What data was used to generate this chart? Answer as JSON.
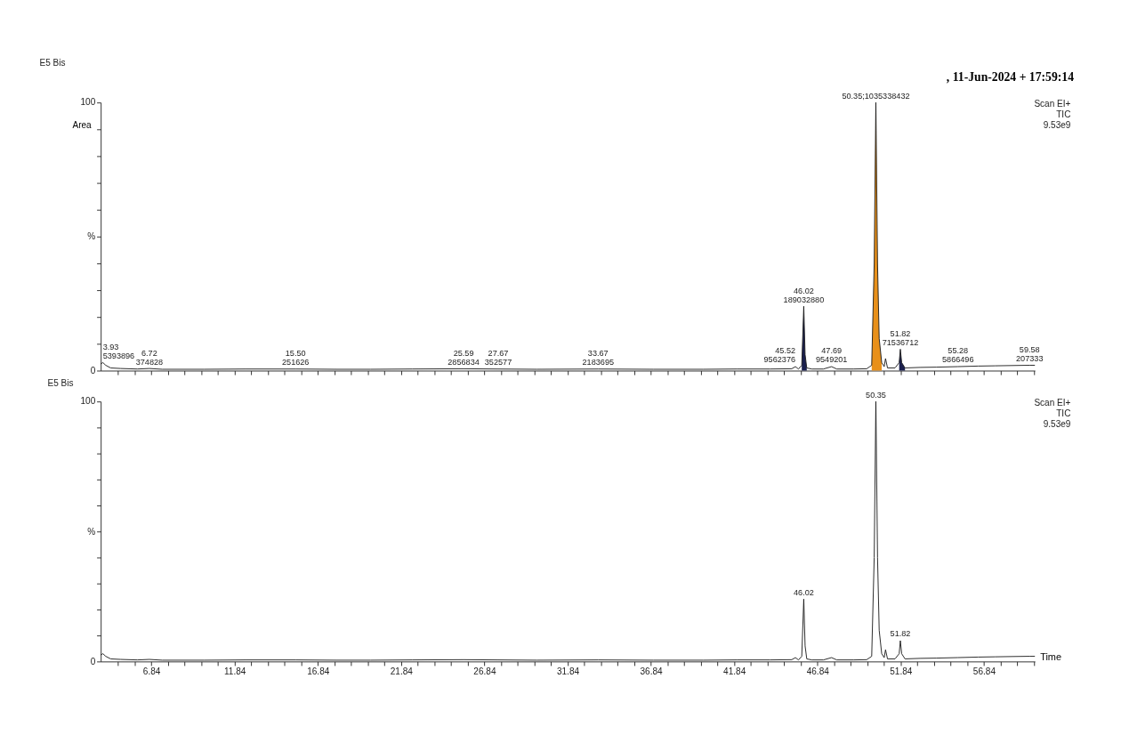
{
  "chart_data": [
    {
      "type": "line",
      "title": "E5 Bis",
      "ylabel": "Area",
      "legend": false,
      "grid": false,
      "tick_labels": "y",
      "xlim": [
        3.8,
        59.9
      ],
      "ylim": [
        0,
        100
      ],
      "xticks": [
        {
          "value": 4.84,
          "label": null
        },
        {
          "value": 5.84,
          "label": null
        },
        {
          "value": 6.84,
          "label": null
        },
        {
          "value": 7.84,
          "label": null
        },
        {
          "value": 8.84,
          "label": null
        },
        {
          "value": 9.84,
          "label": null
        },
        {
          "value": 10.84,
          "label": null
        },
        {
          "value": 11.84,
          "label": null
        },
        {
          "value": 12.84,
          "label": null
        },
        {
          "value": 13.84,
          "label": null
        },
        {
          "value": 14.84,
          "label": null
        },
        {
          "value": 15.84,
          "label": null
        },
        {
          "value": 16.84,
          "label": null
        },
        {
          "value": 17.84,
          "label": null
        },
        {
          "value": 18.84,
          "label": null
        },
        {
          "value": 19.84,
          "label": null
        },
        {
          "value": 20.84,
          "label": null
        },
        {
          "value": 21.84,
          "label": null
        },
        {
          "value": 22.84,
          "label": null
        },
        {
          "value": 23.84,
          "label": null
        },
        {
          "value": 24.84,
          "label": null
        },
        {
          "value": 25.84,
          "label": null
        },
        {
          "value": 26.84,
          "label": null
        },
        {
          "value": 27.84,
          "label": null
        },
        {
          "value": 28.84,
          "label": null
        },
        {
          "value": 29.84,
          "label": null
        },
        {
          "value": 30.84,
          "label": null
        },
        {
          "value": 31.84,
          "label": null
        },
        {
          "value": 32.84,
          "label": null
        },
        {
          "value": 33.84,
          "label": null
        },
        {
          "value": 34.84,
          "label": null
        },
        {
          "value": 35.84,
          "label": null
        },
        {
          "value": 36.84,
          "label": null
        },
        {
          "value": 37.84,
          "label": null
        },
        {
          "value": 38.84,
          "label": null
        },
        {
          "value": 39.84,
          "label": null
        },
        {
          "value": 40.84,
          "label": null
        },
        {
          "value": 41.84,
          "label": null
        },
        {
          "value": 42.84,
          "label": null
        },
        {
          "value": 43.84,
          "label": null
        },
        {
          "value": 44.84,
          "label": null
        },
        {
          "value": 45.84,
          "label": null
        },
        {
          "value": 46.84,
          "label": null
        },
        {
          "value": 47.84,
          "label": null
        },
        {
          "value": 48.84,
          "label": null
        },
        {
          "value": 49.84,
          "label": null
        },
        {
          "value": 50.84,
          "label": null
        },
        {
          "value": 51.84,
          "label": null
        },
        {
          "value": 52.84,
          "label": null
        },
        {
          "value": 53.84,
          "label": null
        },
        {
          "value": 54.84,
          "label": null
        },
        {
          "value": 55.84,
          "label": null
        },
        {
          "value": 56.84,
          "label": null
        },
        {
          "value": 57.84,
          "label": null
        },
        {
          "value": 58.84,
          "label": null
        },
        {
          "value": 59.84,
          "label": null
        }
      ],
      "yticks": [
        0,
        {
          "value": 10,
          "label": null
        },
        {
          "value": 20,
          "label": null
        },
        {
          "value": 30,
          "label": null
        },
        {
          "value": 40,
          "label": null
        },
        {
          "value": 50,
          "label": "%"
        },
        {
          "value": 60,
          "label": null
        },
        {
          "value": 70,
          "label": null
        },
        {
          "value": 80,
          "label": null
        },
        {
          "value": 90,
          "label": null
        },
        100
      ],
      "series": [
        {
          "type": "line",
          "color": "#1a1a1a",
          "x": [
            3.8,
            3.93,
            4.1,
            4.4,
            5,
            6,
            6.72,
            7.5,
            10,
            12.5,
            15.5,
            18,
            20,
            22.5,
            25.59,
            27.67,
            30,
            33.67,
            37,
            40,
            42,
            44,
            45.3,
            45.52,
            45.7,
            45.9,
            46.02,
            46.1,
            46.2,
            46.5,
            47.2,
            47.69,
            48,
            49,
            49.8,
            50.1,
            50.25,
            50.35,
            50.45,
            50.55,
            50.7,
            50.85,
            50.93,
            51.05,
            51.5,
            51.75,
            51.82,
            51.9,
            52.1,
            53,
            54,
            55.28,
            56.5,
            57.5,
            58.5,
            59.58,
            59.9
          ],
          "values": [
            2.5,
            3,
            2,
            1,
            0.8,
            0.6,
            0.8,
            0.5,
            0.5,
            0.6,
            0.6,
            0.5,
            0.5,
            0.6,
            0.7,
            0.6,
            0.5,
            0.6,
            0.5,
            0.5,
            0.6,
            0.6,
            0.7,
            1.5,
            0.6,
            2,
            24,
            6,
            1,
            0.6,
            0.6,
            1.5,
            0.6,
            0.6,
            0.7,
            2,
            40,
            100,
            40,
            12,
            3,
            1.5,
            4.5,
            1,
            1,
            3,
            8,
            3,
            1,
            1.2,
            1.3,
            1.5,
            1.7,
            1.8,
            1.9,
            2,
            2
          ]
        },
        {
          "type": "area",
          "color": "#1a1f4d",
          "x": [
            45.9,
            46.02,
            46.1,
            46.2
          ],
          "values": [
            2,
            24,
            6,
            1
          ]
        },
        {
          "type": "area",
          "color": "#e8901a",
          "x": [
            50.1,
            50.25,
            50.35,
            50.45,
            50.55,
            50.7
          ],
          "values": [
            2,
            40,
            100,
            40,
            12,
            3
          ]
        },
        {
          "type": "area",
          "color": "#1a1f4d",
          "x": [
            51.75,
            51.82,
            51.9,
            52.1
          ],
          "values": [
            3,
            8,
            3,
            1
          ]
        }
      ],
      "annotations": [
        ", 11-Jun-2024 + 17:59:14",
        "Scan EI+\nTIC\n9.53e9",
        {
          "text": "3.93\n5393896",
          "x": 3.93,
          "y": 3
        },
        {
          "text": "6.72\n374828",
          "x": 6.72,
          "y": 0.8
        },
        {
          "text": "15.50\n251626",
          "x": 15.5,
          "y": 0.6
        },
        {
          "text": "25.59\n2856834",
          "x": 25.59,
          "y": 0.7
        },
        {
          "text": "27.67\n352577",
          "x": 27.67,
          "y": 0.6
        },
        {
          "text": "33.67\n2183695",
          "x": 33.67,
          "y": 0.6
        },
        {
          "text": "45.52\n9562376",
          "x": 45.52,
          "y": 1.5
        },
        {
          "text": "46.02\n189032880",
          "x": 46.02,
          "y": 24
        },
        {
          "text": "47.69\n9549201",
          "x": 47.69,
          "y": 1.5
        },
        {
          "text": "50.35;1035338432",
          "x": 50.35,
          "y": 100
        },
        {
          "text": "51.82\n71536712",
          "x": 51.82,
          "y": 8
        },
        {
          "text": "55.28\n5866496",
          "x": 55.28,
          "y": 1.5
        },
        {
          "text": "59.58\n207333",
          "x": 59.58,
          "y": 2
        }
      ]
    },
    {
      "type": "line",
      "title": "E5 Bis",
      "xlabel": "Time",
      "legend": false,
      "grid": false,
      "xlim": [
        3.8,
        59.9
      ],
      "ylim": [
        0,
        100
      ],
      "xticks": [
        {
          "value": 4.84,
          "label": null
        },
        {
          "value": 5.84,
          "label": null
        },
        6.84,
        {
          "value": 7.84,
          "label": null
        },
        {
          "value": 8.84,
          "label": null
        },
        {
          "value": 9.84,
          "label": null
        },
        {
          "value": 10.84,
          "label": null
        },
        11.84,
        {
          "value": 12.84,
          "label": null
        },
        {
          "value": 13.84,
          "label": null
        },
        {
          "value": 14.84,
          "label": null
        },
        {
          "value": 15.84,
          "label": null
        },
        16.84,
        {
          "value": 17.84,
          "label": null
        },
        {
          "value": 18.84,
          "label": null
        },
        {
          "value": 19.84,
          "label": null
        },
        {
          "value": 20.84,
          "label": null
        },
        21.84,
        {
          "value": 22.84,
          "label": null
        },
        {
          "value": 23.84,
          "label": null
        },
        {
          "value": 24.84,
          "label": null
        },
        {
          "value": 25.84,
          "label": null
        },
        26.84,
        {
          "value": 27.84,
          "label": null
        },
        {
          "value": 28.84,
          "label": null
        },
        {
          "value": 29.84,
          "label": null
        },
        {
          "value": 30.84,
          "label": null
        },
        31.84,
        {
          "value": 32.84,
          "label": null
        },
        {
          "value": 33.84,
          "label": null
        },
        {
          "value": 34.84,
          "label": null
        },
        {
          "value": 35.84,
          "label": null
        },
        36.84,
        {
          "value": 37.84,
          "label": null
        },
        {
          "value": 38.84,
          "label": null
        },
        {
          "value": 39.84,
          "label": null
        },
        {
          "value": 40.84,
          "label": null
        },
        41.84,
        {
          "value": 42.84,
          "label": null
        },
        {
          "value": 43.84,
          "label": null
        },
        {
          "value": 44.84,
          "label": null
        },
        {
          "value": 45.84,
          "label": null
        },
        46.84,
        {
          "value": 47.84,
          "label": null
        },
        {
          "value": 48.84,
          "label": null
        },
        {
          "value": 49.84,
          "label": null
        },
        {
          "value": 50.84,
          "label": null
        },
        51.84,
        {
          "value": 52.84,
          "label": null
        },
        {
          "value": 53.84,
          "label": null
        },
        {
          "value": 54.84,
          "label": null
        },
        {
          "value": 55.84,
          "label": null
        },
        56.84,
        {
          "value": 57.84,
          "label": null
        },
        {
          "value": 58.84,
          "label": null
        },
        {
          "value": 59.84,
          "label": null
        }
      ],
      "yticks": [
        0,
        {
          "value": 10,
          "label": null
        },
        {
          "value": 20,
          "label": null
        },
        {
          "value": 30,
          "label": null
        },
        {
          "value": 40,
          "label": null
        },
        {
          "value": 50,
          "label": "%"
        },
        {
          "value": 60,
          "label": null
        },
        {
          "value": 70,
          "label": null
        },
        {
          "value": 80,
          "label": null
        },
        {
          "value": 90,
          "label": null
        },
        100
      ],
      "series": [
        {
          "type": "line",
          "color": "#1a1a1a",
          "x": [
            3.8,
            3.93,
            4.1,
            4.4,
            5,
            6,
            6.72,
            7.5,
            10,
            12.5,
            15.5,
            18,
            20,
            22.5,
            25.59,
            27.67,
            30,
            33.67,
            37,
            40,
            42,
            44,
            45.3,
            45.52,
            45.7,
            45.9,
            46.02,
            46.1,
            46.2,
            46.5,
            47.2,
            47.69,
            48,
            49,
            49.8,
            50.1,
            50.25,
            50.35,
            50.45,
            50.55,
            50.7,
            50.85,
            50.93,
            51.05,
            51.5,
            51.75,
            51.82,
            51.9,
            52.1,
            53,
            54,
            55.28,
            56.5,
            57.5,
            58.5,
            59.58,
            59.9
          ],
          "values": [
            2.5,
            3,
            2,
            1,
            0.8,
            0.6,
            0.8,
            0.5,
            0.5,
            0.6,
            0.6,
            0.5,
            0.5,
            0.6,
            0.7,
            0.6,
            0.5,
            0.6,
            0.5,
            0.5,
            0.6,
            0.6,
            0.7,
            1.5,
            0.6,
            2,
            24,
            6,
            1,
            0.6,
            0.6,
            1.5,
            0.6,
            0.6,
            0.7,
            2,
            40,
            100,
            40,
            12,
            3,
            1.5,
            4.5,
            1,
            1,
            3,
            8,
            3,
            1,
            1.2,
            1.3,
            1.5,
            1.7,
            1.8,
            1.9,
            2,
            2
          ]
        }
      ],
      "annotations": [
        "Scan EI+\nTIC\n9.53e9",
        {
          "text": "46.02",
          "x": 46.02,
          "y": 24
        },
        {
          "text": "50.35",
          "x": 50.35,
          "y": 100
        },
        {
          "text": "51.82",
          "x": 51.82,
          "y": 8
        }
      ]
    }
  ]
}
